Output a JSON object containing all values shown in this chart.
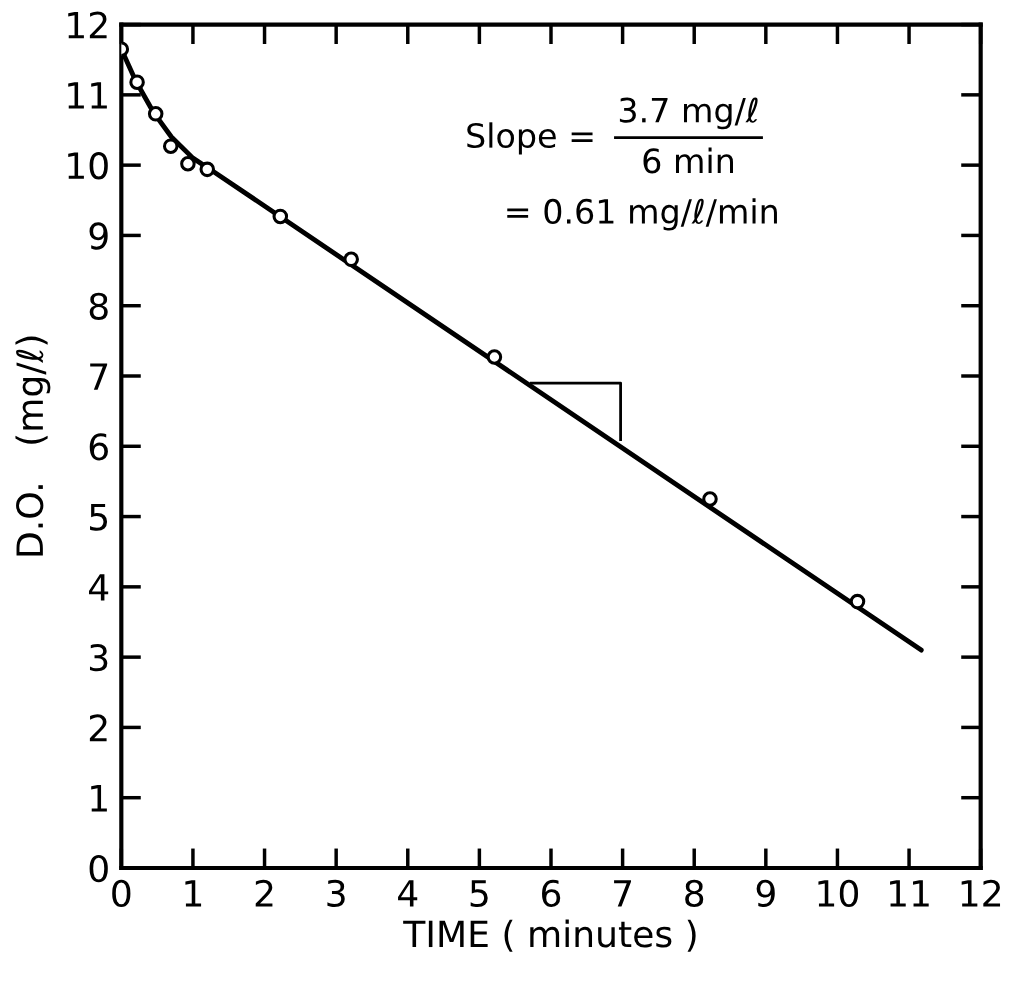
{
  "chart_data": {
    "type": "scatter",
    "xlabel": "TIME ( minutes )",
    "ylabel": "D.O.   (mg/ℓ)",
    "xlim": [
      0,
      12
    ],
    "ylim": [
      0,
      12
    ],
    "xticks": [
      0,
      1,
      2,
      3,
      4,
      5,
      6,
      7,
      8,
      9,
      10,
      11,
      12
    ],
    "yticks": [
      0,
      1,
      2,
      3,
      4,
      5,
      6,
      7,
      8,
      9,
      10,
      11,
      12
    ],
    "grid": false,
    "marker": "circle",
    "series": [
      {
        "color": "#000000",
        "x": [
          0,
          0.22,
          0.48,
          0.69,
          0.93,
          1.2,
          2.22,
          3.21,
          5.21,
          8.22,
          10.28
        ],
        "values": [
          11.65,
          11.18,
          10.73,
          10.27,
          10.02,
          9.94,
          9.27,
          8.66,
          7.27,
          5.25,
          3.79
        ]
      },
      {
        "type": "line",
        "color": "#000000",
        "marker": "none",
        "line_style": "solid",
        "x": [
          0,
          0.2,
          0.45,
          0.7,
          1.0,
          1.3,
          11.17
        ],
        "values": [
          11.65,
          11.2,
          10.75,
          10.4,
          10.1,
          9.9,
          3.1
        ]
      }
    ],
    "annotations": [
      "Slope =",
      "3.7 mg/ℓ",
      "6 min",
      "= 0.61 mg/ℓ/min"
    ]
  }
}
